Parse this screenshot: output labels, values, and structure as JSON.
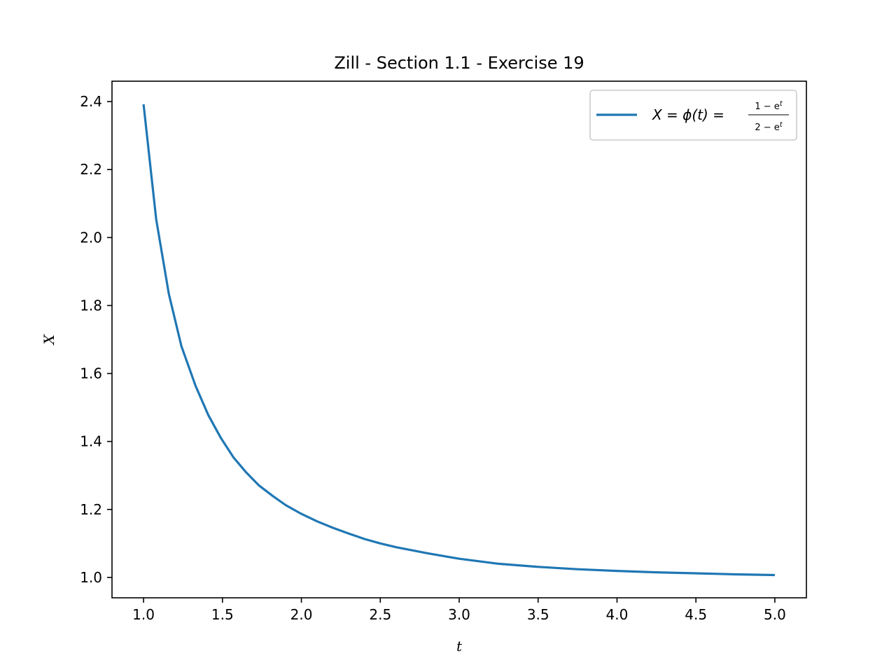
{
  "chart_data": {
    "type": "line",
    "title": "Zill - Section 1.1 - Exercise 19",
    "xlabel": "t",
    "ylabel": "X",
    "xlim": [
      0.8,
      5.2
    ],
    "ylim": [
      0.94,
      2.46
    ],
    "xticks": [
      1.0,
      1.5,
      2.0,
      2.5,
      3.0,
      3.5,
      4.0,
      4.5,
      5.0
    ],
    "yticks": [
      1.0,
      1.2,
      1.4,
      1.6,
      1.8,
      2.0,
      2.2,
      2.4
    ],
    "grid": false,
    "legend_position": "upper right",
    "series": [
      {
        "name": "X = φ(t) = (1 − e^t)/(2 − e^t)",
        "color": "#1f77b4",
        "x": [
          1.0,
          1.08,
          1.16,
          1.24,
          1.33,
          1.41,
          1.49,
          1.57,
          1.65,
          1.73,
          1.82,
          1.9,
          2.0,
          2.1,
          2.2,
          2.3,
          2.4,
          2.5,
          2.6,
          2.8,
          3.0,
          3.25,
          3.5,
          3.75,
          4.0,
          4.25,
          4.5,
          4.75,
          5.0
        ],
        "y": [
          2.392,
          2.054,
          1.834,
          1.68,
          1.563,
          1.478,
          1.41,
          1.353,
          1.309,
          1.271,
          1.239,
          1.213,
          1.187,
          1.165,
          1.146,
          1.129,
          1.113,
          1.1,
          1.089,
          1.071,
          1.055,
          1.04,
          1.031,
          1.024,
          1.019,
          1.015,
          1.012,
          1.009,
          1.007
        ]
      }
    ]
  },
  "legend": {
    "lhs": "X = ϕ(t) = ",
    "numerator": "1 − e",
    "denominator": "2 − e",
    "superscript": "t"
  }
}
